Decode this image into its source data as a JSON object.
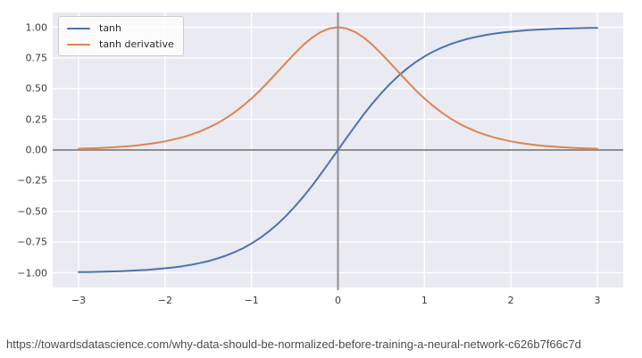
{
  "caption": {
    "url": "https://towardsdatascience.com/why-data-should-be-normalized-before-training-a-neural-network-c626b7f66c7d"
  },
  "chart_data": {
    "type": "line",
    "title": "",
    "xlabel": "",
    "ylabel": "",
    "xlim": [
      -3.3,
      3.3
    ],
    "ylim": [
      -1.12,
      1.12
    ],
    "grid": true,
    "plot_background": "#eaeaf2",
    "gridline_color": "#ffffff",
    "zero_axis_color": "#8e8e8e",
    "xticks": {
      "values": [
        -3,
        -2,
        -1,
        0,
        1,
        2,
        3
      ],
      "labels": [
        "−3",
        "−2",
        "−1",
        "0",
        "1",
        "2",
        "3"
      ]
    },
    "yticks": {
      "values": [
        1.0,
        0.75,
        0.5,
        0.25,
        0.0,
        -0.25,
        -0.5,
        -0.75,
        -1.0
      ],
      "labels": [
        "1.00",
        "0.75",
        "0.50",
        "0.25",
        "0.00",
        "−0.25",
        "−0.50",
        "−0.75",
        "−1.00"
      ]
    },
    "legend": {
      "position": "upper-left",
      "entries": [
        {
          "label": "tanh",
          "color": "#4c72b0"
        },
        {
          "label": "tanh derivative",
          "color": "#dd8452"
        }
      ]
    },
    "x": [
      -3,
      -2.9,
      -2.8,
      -2.7,
      -2.6,
      -2.5,
      -2.4,
      -2.3,
      -2.2,
      -2.1,
      -2,
      -1.9,
      -1.8,
      -1.7,
      -1.6,
      -1.5,
      -1.4,
      -1.3,
      -1.2,
      -1.1,
      -1,
      -0.9,
      -0.8,
      -0.7,
      -0.6,
      -0.5,
      -0.4,
      -0.3,
      -0.2,
      -0.1,
      0,
      0.1,
      0.2,
      0.3,
      0.4,
      0.5,
      0.6,
      0.7,
      0.8,
      0.9,
      1,
      1.1,
      1.2,
      1.3,
      1.4,
      1.5,
      1.6,
      1.7,
      1.8,
      1.9,
      2,
      2.1,
      2.2,
      2.3,
      2.4,
      2.5,
      2.6,
      2.7,
      2.8,
      2.9,
      3
    ],
    "series": [
      {
        "name": "tanh",
        "color": "#4c72b0",
        "values": [
          -0.9951,
          -0.994,
          -0.9926,
          -0.991,
          -0.989,
          -0.9866,
          -0.9837,
          -0.9801,
          -0.9757,
          -0.9705,
          -0.964,
          -0.9562,
          -0.9468,
          -0.9354,
          -0.9217,
          -0.9051,
          -0.8854,
          -0.8617,
          -0.8337,
          -0.8005,
          -0.7616,
          -0.7163,
          -0.664,
          -0.6044,
          -0.537,
          -0.4621,
          -0.3799,
          -0.2913,
          -0.1974,
          -0.0997,
          0,
          0.0997,
          0.1974,
          0.2913,
          0.3799,
          0.4621,
          0.537,
          0.6044,
          0.664,
          0.7163,
          0.7616,
          0.8005,
          0.8337,
          0.8617,
          0.8854,
          0.9051,
          0.9217,
          0.9354,
          0.9468,
          0.9562,
          0.964,
          0.9705,
          0.9757,
          0.9801,
          0.9837,
          0.9866,
          0.989,
          0.991,
          0.9926,
          0.994,
          0.9951
        ]
      },
      {
        "name": "tanh derivative",
        "color": "#dd8452",
        "values": [
          0.0099,
          0.012,
          0.0147,
          0.0179,
          0.0219,
          0.0266,
          0.0323,
          0.0394,
          0.048,
          0.0581,
          0.0707,
          0.0857,
          0.1036,
          0.125,
          0.1505,
          0.1808,
          0.2161,
          0.2575,
          0.3049,
          0.3592,
          0.42,
          0.4869,
          0.5591,
          0.6347,
          0.7116,
          0.7865,
          0.8557,
          0.9151,
          0.961,
          0.9901,
          1,
          0.9901,
          0.961,
          0.9151,
          0.8557,
          0.7865,
          0.7116,
          0.6347,
          0.5591,
          0.4869,
          0.42,
          0.3592,
          0.3049,
          0.2575,
          0.2161,
          0.1808,
          0.1505,
          0.125,
          0.1036,
          0.0857,
          0.0707,
          0.0581,
          0.048,
          0.0394,
          0.0323,
          0.0266,
          0.0219,
          0.0179,
          0.0147,
          0.012,
          0.0099
        ]
      }
    ]
  }
}
